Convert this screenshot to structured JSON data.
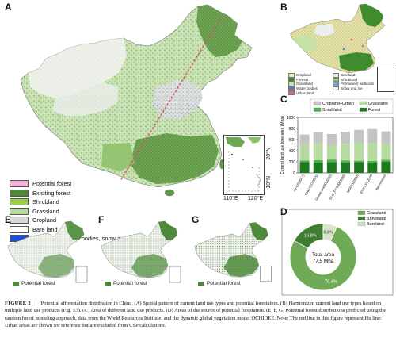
{
  "panels": {
    "a": {
      "label": "A",
      "legend": [
        {
          "name": "Potential forest",
          "color": "#f7b2dc"
        },
        {
          "name": "Exisiting forest",
          "color": "#4d8a3a"
        },
        {
          "name": "Shrubland",
          "color": "#9bd14a"
        },
        {
          "name": "Grassland",
          "color": "#b9d99e"
        },
        {
          "name": "Cropland",
          "color": "#d8d8d8"
        },
        {
          "name": "Bare land",
          "color": "#ffffff"
        },
        {
          "name": "Urban land, Water bodies, snow and ice",
          "color": "#1f4fd1"
        }
      ],
      "inset_lat": [
        "20°N",
        "10°N"
      ],
      "inset_lon": [
        "110°E",
        "120°E"
      ]
    },
    "b": {
      "label": "B",
      "legend": [
        {
          "name": "Cropland",
          "color": "#f3e6a8"
        },
        {
          "name": "Bareland",
          "color": "#e6e6e6"
        },
        {
          "name": "Forests",
          "color": "#3f8c2f"
        },
        {
          "name": "Shrubland",
          "color": "#a3c96b"
        },
        {
          "name": "Grassland",
          "color": "#c7e2a6"
        },
        {
          "name": "Permanent wetlands",
          "color": "#6fa7d8"
        },
        {
          "name": "Water bodies",
          "color": "#4a7fc9"
        },
        {
          "name": "Snow and ice",
          "color": "#f4f8ff"
        },
        {
          "name": "Urban land",
          "color": "#e06a6a"
        }
      ]
    },
    "c": {
      "label": "C"
    },
    "d": {
      "label": "D"
    },
    "e": {
      "label": "E",
      "legend": "Potential forest"
    },
    "f": {
      "label": "F",
      "legend": "Potential forest"
    },
    "g": {
      "label": "G",
      "legend": "Potential forest"
    }
  },
  "chart_data": [
    {
      "type": "bar",
      "title": "",
      "ylabel": "Current land use type area (Mha)",
      "ylim": [
        0,
        1000
      ],
      "yticks": [
        0,
        200,
        400,
        600,
        800,
        1000
      ],
      "categories": [
        "NFGS(2017)",
        "CNLUCC(2015)",
        "GlobeLand30(2020)",
        "GLC_FCS30(2020)",
        "MODIS(2020)",
        "ESA CCI 2020",
        "Harmonized"
      ],
      "legend": [
        "Cropland+Urban",
        "Grassland",
        "Shrubland",
        "Forest"
      ],
      "series": [
        {
          "name": "Forest",
          "color": "#1e7a1e",
          "values": [
            195,
            190,
            195,
            190,
            195,
            185,
            200
          ]
        },
        {
          "name": "Shrubland",
          "color": "#4caf50",
          "values": [
            30,
            40,
            45,
            35,
            25,
            30,
            35
          ]
        },
        {
          "name": "Grassland",
          "color": "#b7dca0",
          "values": [
            290,
            300,
            260,
            300,
            330,
            325,
            280
          ]
        },
        {
          "name": "Cropland+Urban",
          "color": "#c4c4c4",
          "values": [
            175,
            200,
            200,
            215,
            225,
            250,
            235
          ]
        }
      ]
    },
    {
      "type": "pie",
      "title": "",
      "center_label": [
        "Total area",
        "77.5 Mha"
      ],
      "legend": [
        "Grassland",
        "Shrubland",
        "Bareland"
      ],
      "slices": [
        {
          "name": "Grassland",
          "value": 76.4,
          "label": "76.4%",
          "color": "#6fab57"
        },
        {
          "name": "Shrubland",
          "value": 16.8,
          "label": "16.8%",
          "color": "#3f7d31"
        },
        {
          "name": "Bareland",
          "value": 6.8,
          "label": "6.8%",
          "color": "#d9e3c8"
        }
      ]
    }
  ],
  "caption": {
    "lead": "FIGURE 2",
    "sep": "|",
    "text_1": "Potential afforestation distribution in China. (A) Spatial pattern of current land use types and potential forestation. (B) Harmonized current land use types based on multiple land use products (Fig.",
    "ref": "S3",
    "text_2": "). (C) Area of different land use products. (D) Areas of the source of potential forestation. (E, F, G) Potential forest distributions predicted using the random forest modeling approach, data from the World Resources Institute, and the dynamic global vegetation model OCHIDEE. Note: The red line in this figure represent Hu line; Urban areas are shown for reference but are excluded from CSP calculations."
  }
}
